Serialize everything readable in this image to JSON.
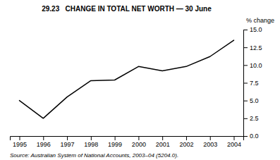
{
  "chart_data": {
    "type": "line",
    "title": "29.23   CHANGE IN TOTAL NET WORTH — 30 June",
    "ylabel": "% change",
    "annotations": [
      "Source: Australian System of National Accounts, 2003–04 (5204.0)."
    ],
    "x": [
      1995,
      1996,
      1997,
      1998,
      1999,
      2000,
      2001,
      2002,
      2003,
      2004
    ],
    "values": [
      5.0,
      2.5,
      5.5,
      7.8,
      7.9,
      9.8,
      9.2,
      9.8,
      11.2,
      13.5
    ],
    "color": "#000000",
    "xlim": [
      1994.6,
      2004.4
    ],
    "xticks": [
      1995,
      1996,
      1997,
      1998,
      1999,
      2000,
      2001,
      2002,
      2003,
      2004
    ],
    "ylim": [
      0,
      15.0
    ],
    "yticks": [
      {
        "value": 0,
        "label": "0.0"
      },
      2.5,
      {
        "value": 5.0,
        "label": "5.0"
      },
      7.5,
      {
        "value": 10.0,
        "label": "10.0"
      },
      12.5,
      {
        "value": 15.0,
        "label": "15.0"
      }
    ],
    "grid": false
  }
}
